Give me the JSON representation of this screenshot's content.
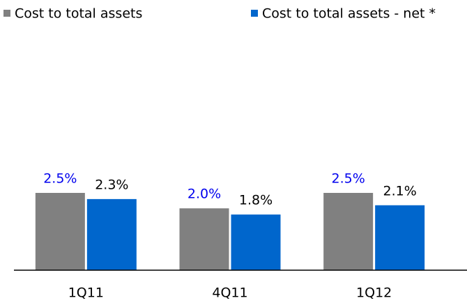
{
  "chart_data": {
    "type": "bar",
    "categories": [
      "1Q11",
      "4Q11",
      "1Q12"
    ],
    "series": [
      {
        "name": "Cost to total assets",
        "color": "#808080",
        "label_color": "#0000ee",
        "values": [
          2.5,
          2.0,
          2.5
        ],
        "value_labels": [
          "2.5%",
          "2.0%",
          "2.5%"
        ]
      },
      {
        "name": "Cost to total assets - net *",
        "color": "#0066cc",
        "label_color": "#000000",
        "values": [
          2.3,
          1.8,
          2.1
        ],
        "value_labels": [
          "2.3%",
          "1.8%",
          "2.1%"
        ]
      }
    ],
    "legend": "top"
  }
}
